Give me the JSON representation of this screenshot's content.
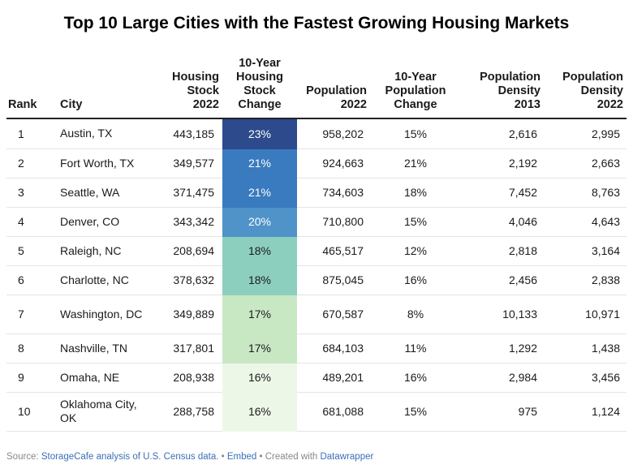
{
  "chart_data": {
    "type": "table",
    "title": "Top 10 Large Cities with the Fastest Growing Housing Markets",
    "columns": [
      "Rank",
      "City",
      "Housing Stock 2022",
      "10-Year Housing Stock Change",
      "Population 2022",
      "10-Year Population Change",
      "Population Density 2013",
      "Population Density 2022"
    ],
    "rows": [
      {
        "rank": "1",
        "city": "Austin, TX",
        "stock": "443,185",
        "stock_change": "23%",
        "pct": 23,
        "pop": "958,202",
        "pop_change": "15%",
        "d2013": "2,616",
        "d2022": "2,995"
      },
      {
        "rank": "2",
        "city": "Fort Worth, TX",
        "stock": "349,577",
        "stock_change": "21%",
        "pct": 21,
        "pop": "924,663",
        "pop_change": "21%",
        "d2013": "2,192",
        "d2022": "2,663"
      },
      {
        "rank": "3",
        "city": "Seattle, WA",
        "stock": "371,475",
        "stock_change": "21%",
        "pct": 21,
        "pop": "734,603",
        "pop_change": "18%",
        "d2013": "7,452",
        "d2022": "8,763"
      },
      {
        "rank": "4",
        "city": "Denver, CO",
        "stock": "343,342",
        "stock_change": "20%",
        "pct": 20,
        "pop": "710,800",
        "pop_change": "15%",
        "d2013": "4,046",
        "d2022": "4,643"
      },
      {
        "rank": "5",
        "city": "Raleigh, NC",
        "stock": "208,694",
        "stock_change": "18%",
        "pct": 18,
        "pop": "465,517",
        "pop_change": "12%",
        "d2013": "2,818",
        "d2022": "3,164"
      },
      {
        "rank": "6",
        "city": "Charlotte, NC",
        "stock": "378,632",
        "stock_change": "18%",
        "pct": 18,
        "pop": "875,045",
        "pop_change": "16%",
        "d2013": "2,456",
        "d2022": "2,838"
      },
      {
        "rank": "7",
        "city": "Washington, DC",
        "stock": "349,889",
        "stock_change": "17%",
        "pct": 17,
        "pop": "670,587",
        "pop_change": "8%",
        "d2013": "10,133",
        "d2022": "10,971"
      },
      {
        "rank": "8",
        "city": "Nashville, TN",
        "stock": "317,801",
        "stock_change": "17%",
        "pct": 17,
        "pop": "684,103",
        "pop_change": "11%",
        "d2013": "1,292",
        "d2022": "1,438"
      },
      {
        "rank": "9",
        "city": "Omaha, NE",
        "stock": "208,938",
        "stock_change": "16%",
        "pct": 16,
        "pop": "489,201",
        "pop_change": "16%",
        "d2013": "2,984",
        "d2022": "3,456"
      },
      {
        "rank": "10",
        "city": "Oklahoma City, OK",
        "stock": "288,758",
        "stock_change": "16%",
        "pct": 16,
        "pop": "681,088",
        "pop_change": "15%",
        "d2013": "975",
        "d2022": "1,124"
      }
    ],
    "heat_colors": {
      "23": "#2c4a8c",
      "21": "#3a7abf",
      "20": "#4f93c9",
      "18": "#8ccfbf",
      "17": "#c8e8c4",
      "16": "#edf7e8"
    },
    "heat_text_light": "#ffffff",
    "heat_text_dark": "#1a1a1a"
  },
  "footer": {
    "source_label": "Source: ",
    "source_link": "StorageCafe analysis of U.S. Census data.",
    "sep1": " • ",
    "embed": "Embed",
    "sep2": " • Created with ",
    "tool": "Datawrapper"
  }
}
